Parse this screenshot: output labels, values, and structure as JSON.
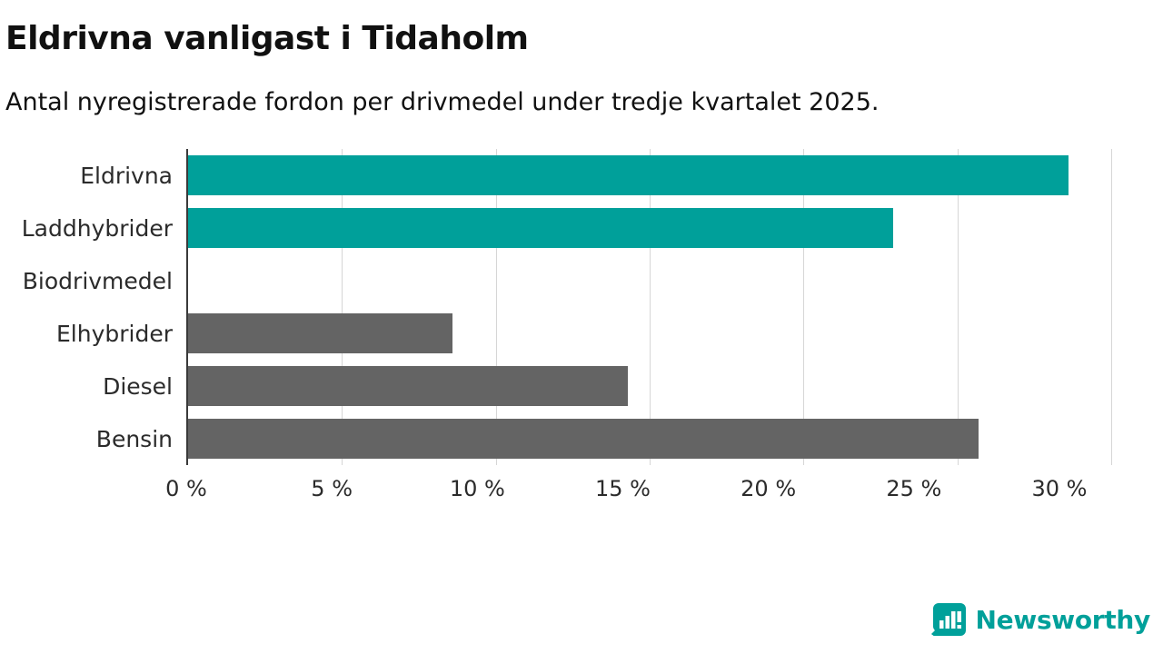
{
  "header": {
    "title": "Eldrivna vanligast i Tidaholm",
    "subtitle": "Antal nyregistrerade fordon per drivmedel under tredje kvartalet 2025."
  },
  "chart_data": {
    "type": "bar",
    "orientation": "horizontal",
    "title": "Eldrivna vanligast i Tidaholm",
    "subtitle": "Antal nyregistrerade fordon per drivmedel under tredje kvartalet 2025.",
    "categories": [
      "Eldrivna",
      "Laddhybrider",
      "Biodrivmedel",
      "Elhybrider",
      "Diesel",
      "Bensin"
    ],
    "values": [
      28.6,
      22.9,
      0,
      8.6,
      14.3,
      25.7
    ],
    "colors": [
      "#00a09a",
      "#00a09a",
      "#646464",
      "#646464",
      "#646464",
      "#646464"
    ],
    "xlim": [
      0,
      30
    ],
    "x_ticks": [
      {
        "value": 0,
        "label": "0 %"
      },
      {
        "value": 5,
        "label": "5 %"
      },
      {
        "value": 10,
        "label": "10 %"
      },
      {
        "value": 15,
        "label": "15 %"
      },
      {
        "value": 20,
        "label": "20 %"
      },
      {
        "value": 25,
        "label": "25 %"
      },
      {
        "value": 30,
        "label": "30 %"
      }
    ],
    "grid": "vertical",
    "legend": "none",
    "xlabel": "",
    "ylabel": "",
    "accent_color": "#00a09a",
    "neutral_color": "#646464"
  },
  "branding": {
    "logo_text": "Newsworthy",
    "accent": "#00a09a"
  }
}
